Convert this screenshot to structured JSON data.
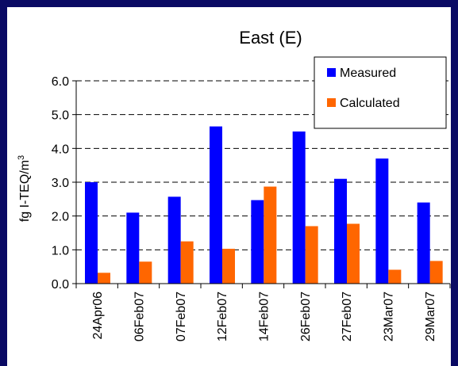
{
  "chart_data": {
    "type": "bar",
    "title": "East (E)",
    "ylabel": "fg I-TEQ/m",
    "ylabel_superscript": "3",
    "xlabel": "",
    "categories": [
      "24Apr06",
      "06Feb07",
      "07Feb07",
      "12Feb07",
      "14Feb07",
      "26Feb07",
      "27Feb07",
      "23Mar07",
      "29Mar07"
    ],
    "series": [
      {
        "name": "Measured",
        "color": "#0000ff",
        "values": [
          3.0,
          2.1,
          2.57,
          4.65,
          2.47,
          4.5,
          3.1,
          3.7,
          2.4
        ]
      },
      {
        "name": "Calculated",
        "color": "#ff6600",
        "values": [
          0.32,
          0.65,
          1.25,
          1.03,
          2.87,
          1.7,
          1.77,
          0.41,
          0.67
        ]
      }
    ],
    "ylim": [
      0,
      6
    ],
    "yticks": [
      "0.0",
      "1.0",
      "2.0",
      "3.0",
      "4.0",
      "5.0",
      "6.0"
    ],
    "grid": true,
    "legend_position": "top-right"
  }
}
